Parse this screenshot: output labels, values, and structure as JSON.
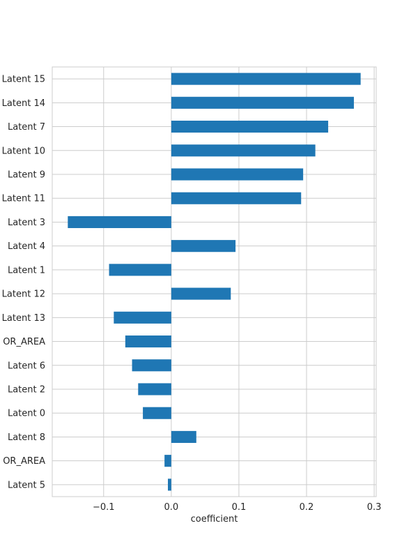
{
  "chart_data": {
    "type": "bar",
    "orientation": "horizontal",
    "title": "",
    "xlabel": "coefficient",
    "ylabel": "",
    "categories": [
      "Latent 15",
      "Latent 14",
      "Latent 7",
      "Latent 10",
      "Latent 9",
      "Latent 11",
      "Latent 3",
      "Latent 4",
      "Latent 1",
      "Latent 12",
      "Latent 13",
      "OR_AREA",
      "Latent 6",
      "Latent 2",
      "Latent 0",
      "Latent 8",
      "OR_AREA",
      "Latent 5"
    ],
    "values": [
      0.28,
      0.27,
      0.232,
      0.213,
      0.195,
      0.192,
      -0.153,
      0.095,
      -0.092,
      0.088,
      -0.085,
      -0.068,
      -0.058,
      -0.049,
      -0.042,
      0.037,
      -0.01,
      -0.005
    ],
    "xlim": [
      -0.176,
      0.303
    ],
    "xticks": [
      -0.1,
      0.0,
      0.1,
      0.2,
      0.3
    ],
    "xtick_labels": [
      "−0.1",
      "0.0",
      "0.1",
      "0.2",
      "0.3"
    ],
    "grid": true,
    "colors": {
      "bar": "#1f77b4",
      "grid": "#cccccc",
      "frame": "#cccccc",
      "text": "#262626"
    }
  }
}
